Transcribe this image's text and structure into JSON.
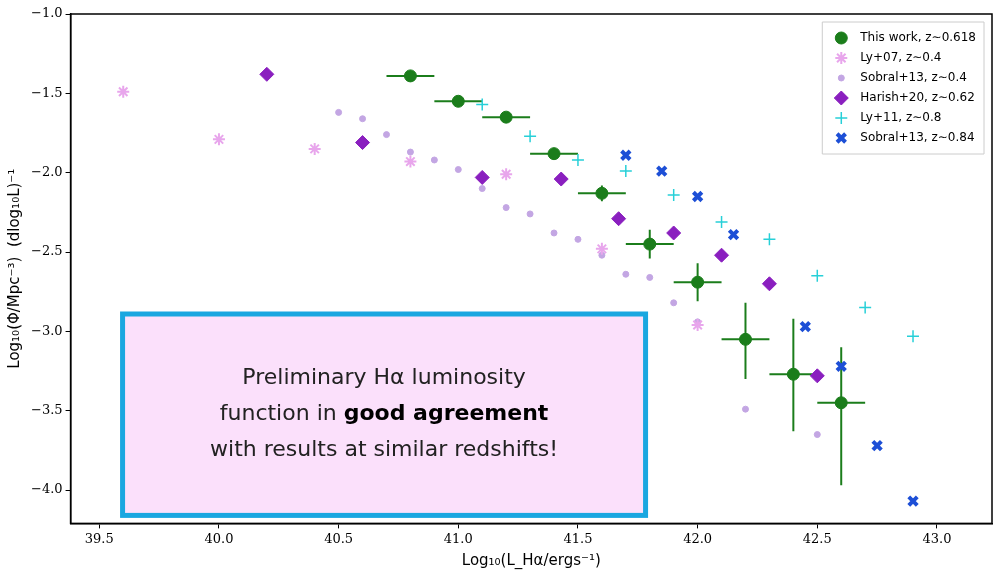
{
  "chart_data": {
    "type": "scatter",
    "x_label": "Log₁₀(L_Hα/ergs⁻¹)",
    "y_label": "Log₁₀(Φ/Mpc⁻³)  (dlog₁₀L)⁻¹",
    "xlim": [
      39.38,
      43.23
    ],
    "xticks": [
      39.5,
      {
        "value": 40,
        "label": "40.0"
      },
      40.5,
      {
        "value": 41,
        "label": "41.0"
      },
      41.5,
      {
        "value": 42,
        "label": "42.0"
      },
      42.5,
      {
        "value": 43,
        "label": "43.0"
      }
    ],
    "ylim": [
      -4.21,
      -1.0
    ],
    "yticks": [
      {
        "value": -1,
        "label": "−1.0"
      },
      {
        "value": -1.5,
        "label": "−1.5"
      },
      {
        "value": -2,
        "label": "−2.0"
      },
      {
        "value": -2.5,
        "label": "−2.5"
      },
      {
        "value": -3,
        "label": "−3.0"
      },
      {
        "value": -3.5,
        "label": "−3.5"
      },
      {
        "value": -4,
        "label": "−4.0"
      }
    ],
    "grid": false,
    "legend": "upper right",
    "annotation": {
      "lines": [
        "Preliminary Hα luminosity",
        "function in good agreement",
        "with results at similar redshifts!"
      ],
      "emphasis": "good agreement"
    },
    "series": [
      {
        "name": "This work, z∼0.618",
        "color": "#1b7d1b",
        "marker": "circle",
        "x": [
          40.8,
          41.0,
          41.2,
          41.4,
          41.6,
          41.8,
          42.0,
          42.2,
          42.4,
          42.6
        ],
        "values": [
          -1.39,
          -1.55,
          -1.65,
          -1.88,
          -2.13,
          -2.45,
          -2.69,
          -3.05,
          -3.27,
          -3.45
        ],
        "x_err": [
          0.1,
          0.1,
          0.1,
          0.1,
          0.1,
          0.1,
          0.1,
          0.1,
          0.1,
          0.1
        ],
        "y_err_minus": [
          0.02,
          0.02,
          0.02,
          0.03,
          0.05,
          0.09,
          0.12,
          0.25,
          0.36,
          0.52
        ],
        "y_err_plus": [
          0.02,
          0.02,
          0.02,
          0.03,
          0.05,
          0.09,
          0.12,
          0.23,
          0.35,
          0.35
        ]
      },
      {
        "name": "Ly+07, z∼0.4",
        "color": "#e8a6ec",
        "marker": "star",
        "x": [
          39.6,
          40.0,
          40.4,
          40.8,
          41.2,
          41.6,
          42.0
        ],
        "values": [
          -1.49,
          -1.79,
          -1.85,
          -1.93,
          -2.01,
          -2.48,
          -2.96
        ]
      },
      {
        "name": "Sobral+13, z∼0.4",
        "color": "#c3a6e3",
        "marker": "dot",
        "x": [
          40.5,
          40.6,
          40.7,
          40.8,
          40.9,
          41.0,
          41.1,
          41.2,
          41.3,
          41.4,
          41.5,
          41.6,
          41.7,
          41.8,
          41.9,
          42.0,
          42.2,
          42.5
        ],
        "values": [
          -1.62,
          -1.66,
          -1.76,
          -1.87,
          -1.92,
          -1.98,
          -2.1,
          -2.22,
          -2.26,
          -2.38,
          -2.42,
          -2.52,
          -2.64,
          -2.66,
          -2.82,
          -2.94,
          -3.49,
          -3.65
        ]
      },
      {
        "name": "Harish+20, z∼0.62",
        "color": "#8a1fbf",
        "marker": "diamond",
        "x": [
          40.2,
          40.6,
          41.1,
          41.43,
          41.67,
          41.9,
          42.1,
          42.3,
          42.5
        ],
        "values": [
          -1.38,
          -1.81,
          -2.03,
          -2.04,
          -2.29,
          -2.38,
          -2.52,
          -2.7,
          -3.28
        ]
      },
      {
        "name": "Ly+11, z∼0.8",
        "color": "#27d0d8",
        "marker": "plus",
        "x": [
          41.1,
          41.3,
          41.5,
          41.7,
          41.9,
          42.1,
          42.3,
          42.5,
          42.7,
          42.9
        ],
        "values": [
          -1.57,
          -1.77,
          -1.92,
          -1.99,
          -2.14,
          -2.31,
          -2.42,
          -2.65,
          -2.85,
          -3.03
        ]
      },
      {
        "name": "Sobral+13, z∼0.84",
        "color": "#1d4fd6",
        "marker": "x",
        "x": [
          41.7,
          41.85,
          42.0,
          42.15,
          42.45,
          42.6,
          42.75,
          42.9
        ],
        "values": [
          -1.89,
          -1.99,
          -2.15,
          -2.39,
          -2.97,
          -3.22,
          -3.72,
          -4.07
        ]
      }
    ]
  }
}
